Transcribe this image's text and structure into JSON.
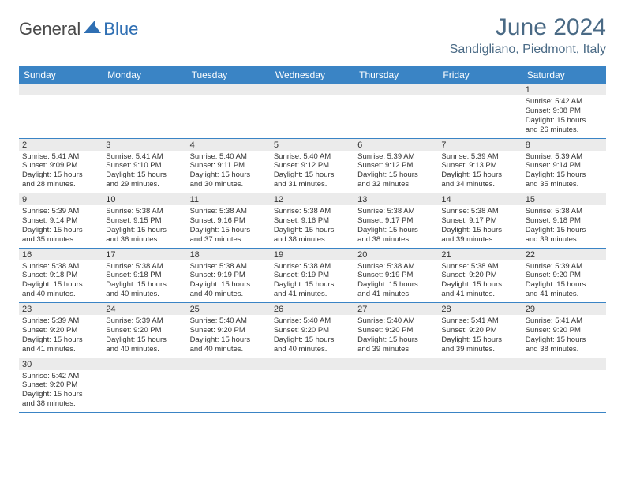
{
  "logo": {
    "part1": "General",
    "part2": "Blue"
  },
  "title": {
    "month": "June 2024",
    "location": "Sandigliano, Piedmont, Italy"
  },
  "colors": {
    "header_bg": "#3a84c5",
    "header_text": "#ffffff",
    "daynum_bg": "#ebebeb",
    "text": "#333333",
    "title_color": "#4a6a85",
    "row_border": "#3a84c5"
  },
  "fonts": {
    "title_size_pt": 22,
    "location_size_pt": 12,
    "weekday_size_pt": 9,
    "cell_size_pt": 7
  },
  "weekdays": [
    "Sunday",
    "Monday",
    "Tuesday",
    "Wednesday",
    "Thursday",
    "Friday",
    "Saturday"
  ],
  "weeks": [
    {
      "nums": [
        "",
        "",
        "",
        "",
        "",
        "",
        "1"
      ],
      "cells": [
        null,
        null,
        null,
        null,
        null,
        null,
        {
          "sunrise": "Sunrise: 5:42 AM",
          "sunset": "Sunset: 9:08 PM",
          "day1": "Daylight: 15 hours",
          "day2": "and 26 minutes."
        }
      ]
    },
    {
      "nums": [
        "2",
        "3",
        "4",
        "5",
        "6",
        "7",
        "8"
      ],
      "cells": [
        {
          "sunrise": "Sunrise: 5:41 AM",
          "sunset": "Sunset: 9:09 PM",
          "day1": "Daylight: 15 hours",
          "day2": "and 28 minutes."
        },
        {
          "sunrise": "Sunrise: 5:41 AM",
          "sunset": "Sunset: 9:10 PM",
          "day1": "Daylight: 15 hours",
          "day2": "and 29 minutes."
        },
        {
          "sunrise": "Sunrise: 5:40 AM",
          "sunset": "Sunset: 9:11 PM",
          "day1": "Daylight: 15 hours",
          "day2": "and 30 minutes."
        },
        {
          "sunrise": "Sunrise: 5:40 AM",
          "sunset": "Sunset: 9:12 PM",
          "day1": "Daylight: 15 hours",
          "day2": "and 31 minutes."
        },
        {
          "sunrise": "Sunrise: 5:39 AM",
          "sunset": "Sunset: 9:12 PM",
          "day1": "Daylight: 15 hours",
          "day2": "and 32 minutes."
        },
        {
          "sunrise": "Sunrise: 5:39 AM",
          "sunset": "Sunset: 9:13 PM",
          "day1": "Daylight: 15 hours",
          "day2": "and 34 minutes."
        },
        {
          "sunrise": "Sunrise: 5:39 AM",
          "sunset": "Sunset: 9:14 PM",
          "day1": "Daylight: 15 hours",
          "day2": "and 35 minutes."
        }
      ]
    },
    {
      "nums": [
        "9",
        "10",
        "11",
        "12",
        "13",
        "14",
        "15"
      ],
      "cells": [
        {
          "sunrise": "Sunrise: 5:39 AM",
          "sunset": "Sunset: 9:14 PM",
          "day1": "Daylight: 15 hours",
          "day2": "and 35 minutes."
        },
        {
          "sunrise": "Sunrise: 5:38 AM",
          "sunset": "Sunset: 9:15 PM",
          "day1": "Daylight: 15 hours",
          "day2": "and 36 minutes."
        },
        {
          "sunrise": "Sunrise: 5:38 AM",
          "sunset": "Sunset: 9:16 PM",
          "day1": "Daylight: 15 hours",
          "day2": "and 37 minutes."
        },
        {
          "sunrise": "Sunrise: 5:38 AM",
          "sunset": "Sunset: 9:16 PM",
          "day1": "Daylight: 15 hours",
          "day2": "and 38 minutes."
        },
        {
          "sunrise": "Sunrise: 5:38 AM",
          "sunset": "Sunset: 9:17 PM",
          "day1": "Daylight: 15 hours",
          "day2": "and 38 minutes."
        },
        {
          "sunrise": "Sunrise: 5:38 AM",
          "sunset": "Sunset: 9:17 PM",
          "day1": "Daylight: 15 hours",
          "day2": "and 39 minutes."
        },
        {
          "sunrise": "Sunrise: 5:38 AM",
          "sunset": "Sunset: 9:18 PM",
          "day1": "Daylight: 15 hours",
          "day2": "and 39 minutes."
        }
      ]
    },
    {
      "nums": [
        "16",
        "17",
        "18",
        "19",
        "20",
        "21",
        "22"
      ],
      "cells": [
        {
          "sunrise": "Sunrise: 5:38 AM",
          "sunset": "Sunset: 9:18 PM",
          "day1": "Daylight: 15 hours",
          "day2": "and 40 minutes."
        },
        {
          "sunrise": "Sunrise: 5:38 AM",
          "sunset": "Sunset: 9:18 PM",
          "day1": "Daylight: 15 hours",
          "day2": "and 40 minutes."
        },
        {
          "sunrise": "Sunrise: 5:38 AM",
          "sunset": "Sunset: 9:19 PM",
          "day1": "Daylight: 15 hours",
          "day2": "and 40 minutes."
        },
        {
          "sunrise": "Sunrise: 5:38 AM",
          "sunset": "Sunset: 9:19 PM",
          "day1": "Daylight: 15 hours",
          "day2": "and 41 minutes."
        },
        {
          "sunrise": "Sunrise: 5:38 AM",
          "sunset": "Sunset: 9:19 PM",
          "day1": "Daylight: 15 hours",
          "day2": "and 41 minutes."
        },
        {
          "sunrise": "Sunrise: 5:38 AM",
          "sunset": "Sunset: 9:20 PM",
          "day1": "Daylight: 15 hours",
          "day2": "and 41 minutes."
        },
        {
          "sunrise": "Sunrise: 5:39 AM",
          "sunset": "Sunset: 9:20 PM",
          "day1": "Daylight: 15 hours",
          "day2": "and 41 minutes."
        }
      ]
    },
    {
      "nums": [
        "23",
        "24",
        "25",
        "26",
        "27",
        "28",
        "29"
      ],
      "cells": [
        {
          "sunrise": "Sunrise: 5:39 AM",
          "sunset": "Sunset: 9:20 PM",
          "day1": "Daylight: 15 hours",
          "day2": "and 41 minutes."
        },
        {
          "sunrise": "Sunrise: 5:39 AM",
          "sunset": "Sunset: 9:20 PM",
          "day1": "Daylight: 15 hours",
          "day2": "and 40 minutes."
        },
        {
          "sunrise": "Sunrise: 5:40 AM",
          "sunset": "Sunset: 9:20 PM",
          "day1": "Daylight: 15 hours",
          "day2": "and 40 minutes."
        },
        {
          "sunrise": "Sunrise: 5:40 AM",
          "sunset": "Sunset: 9:20 PM",
          "day1": "Daylight: 15 hours",
          "day2": "and 40 minutes."
        },
        {
          "sunrise": "Sunrise: 5:40 AM",
          "sunset": "Sunset: 9:20 PM",
          "day1": "Daylight: 15 hours",
          "day2": "and 39 minutes."
        },
        {
          "sunrise": "Sunrise: 5:41 AM",
          "sunset": "Sunset: 9:20 PM",
          "day1": "Daylight: 15 hours",
          "day2": "and 39 minutes."
        },
        {
          "sunrise": "Sunrise: 5:41 AM",
          "sunset": "Sunset: 9:20 PM",
          "day1": "Daylight: 15 hours",
          "day2": "and 38 minutes."
        }
      ]
    },
    {
      "nums": [
        "30",
        "",
        "",
        "",
        "",
        "",
        ""
      ],
      "cells": [
        {
          "sunrise": "Sunrise: 5:42 AM",
          "sunset": "Sunset: 9:20 PM",
          "day1": "Daylight: 15 hours",
          "day2": "and 38 minutes."
        },
        null,
        null,
        null,
        null,
        null,
        null
      ]
    }
  ]
}
